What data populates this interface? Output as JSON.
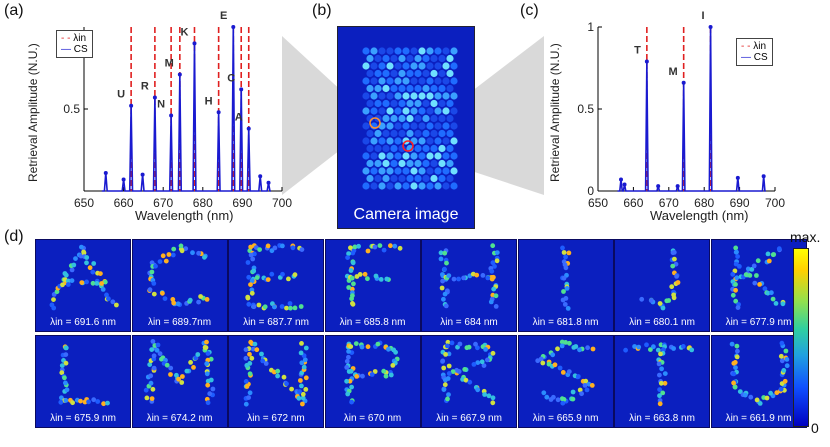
{
  "panel_labels": [
    "(a)",
    "(b)",
    "(c)",
    "(d)"
  ],
  "camera_caption": "Camera image",
  "colorbar": {
    "max_label": "max.",
    "min_label": "0"
  },
  "chart_data": [
    {
      "type": "line",
      "panel": "(a)",
      "xlabel": "Wavelength (nm)",
      "ylabel": "Retrieval Amplitude (N.U.)",
      "xlim": [
        650,
        700
      ],
      "ylim": [
        0,
        1
      ],
      "xticks": [
        650,
        660,
        670,
        680,
        690,
        700
      ],
      "yticks": [
        0.5
      ],
      "legend": [
        "λin",
        "CS"
      ],
      "input_wavelengths": [
        661.9,
        667.9,
        672,
        674.2,
        677.9,
        684,
        687.7,
        689.7,
        691.6
      ],
      "peaks": [
        {
          "x": 655.5,
          "y": 0.11
        },
        {
          "x": 660,
          "y": 0.07
        },
        {
          "x": 661.9,
          "y": 0.52,
          "label": "U"
        },
        {
          "x": 664.8,
          "y": 0.1
        },
        {
          "x": 667.9,
          "y": 0.57,
          "label": "R"
        },
        {
          "x": 672,
          "y": 0.46,
          "label": "N"
        },
        {
          "x": 674.2,
          "y": 0.71,
          "label": "M"
        },
        {
          "x": 677.9,
          "y": 0.9,
          "label": "K"
        },
        {
          "x": 684,
          "y": 0.48,
          "label": "H"
        },
        {
          "x": 687.7,
          "y": 1.0,
          "label": "E"
        },
        {
          "x": 689.7,
          "y": 0.62,
          "label": "C"
        },
        {
          "x": 691.6,
          "y": 0.38,
          "label": "A"
        },
        {
          "x": 694.5,
          "y": 0.09
        },
        {
          "x": 696.6,
          "y": 0.05
        }
      ]
    },
    {
      "type": "line",
      "panel": "(c)",
      "xlabel": "Wavelength (nm)",
      "ylabel": "Retrieval Amplitude (N.U.)",
      "xlim": [
        650,
        700
      ],
      "ylim": [
        0,
        1
      ],
      "xticks": [
        650,
        660,
        670,
        680,
        690,
        700
      ],
      "yticks": [
        0,
        0.5,
        1
      ],
      "legend": [
        "λin",
        "CS"
      ],
      "input_wavelengths": [
        663.8,
        674.2,
        681.8
      ],
      "peaks": [
        {
          "x": 656.5,
          "y": 0.07
        },
        {
          "x": 657.5,
          "y": 0.04
        },
        {
          "x": 663.8,
          "y": 0.79,
          "label": "T"
        },
        {
          "x": 667,
          "y": 0.03
        },
        {
          "x": 672.5,
          "y": 0.03
        },
        {
          "x": 674.2,
          "y": 0.66,
          "label": "M"
        },
        {
          "x": 681.8,
          "y": 1.0,
          "label": "I"
        },
        {
          "x": 689.5,
          "y": 0.08
        },
        {
          "x": 696.8,
          "y": 0.09
        }
      ]
    }
  ],
  "tiles": [
    {
      "letter": "A",
      "caption": "λin = 691.6 nm"
    },
    {
      "letter": "C",
      "caption": "λin = 689.7nm"
    },
    {
      "letter": "E",
      "caption": "λin = 687.7 nm"
    },
    {
      "letter": "F",
      "caption": "λin = 685.8 nm"
    },
    {
      "letter": "H",
      "caption": "λin = 684 nm"
    },
    {
      "letter": "I",
      "caption": "λin = 681.8 nm"
    },
    {
      "letter": "J",
      "caption": "λin = 680.1 nm"
    },
    {
      "letter": "K",
      "caption": "λin = 677.9 nm"
    },
    {
      "letter": "L",
      "caption": "λin = 675.9 nm"
    },
    {
      "letter": "M",
      "caption": "λin = 674.2 nm"
    },
    {
      "letter": "N",
      "caption": "λin = 672 nm"
    },
    {
      "letter": "P",
      "caption": "λin = 670 nm"
    },
    {
      "letter": "R",
      "caption": "λin = 667.9 nm"
    },
    {
      "letter": "S",
      "caption": "λin = 665.9 nm"
    },
    {
      "letter": "T",
      "caption": "λin = 663.8 nm"
    },
    {
      "letter": "U",
      "caption": "λin = 661.9 nm"
    }
  ],
  "colors": {
    "cs_line": "#1a1ad0",
    "lambda_line": "#e02020",
    "tile_bg": "#0b1fbf",
    "gray_cone": "#d9d9d9"
  }
}
